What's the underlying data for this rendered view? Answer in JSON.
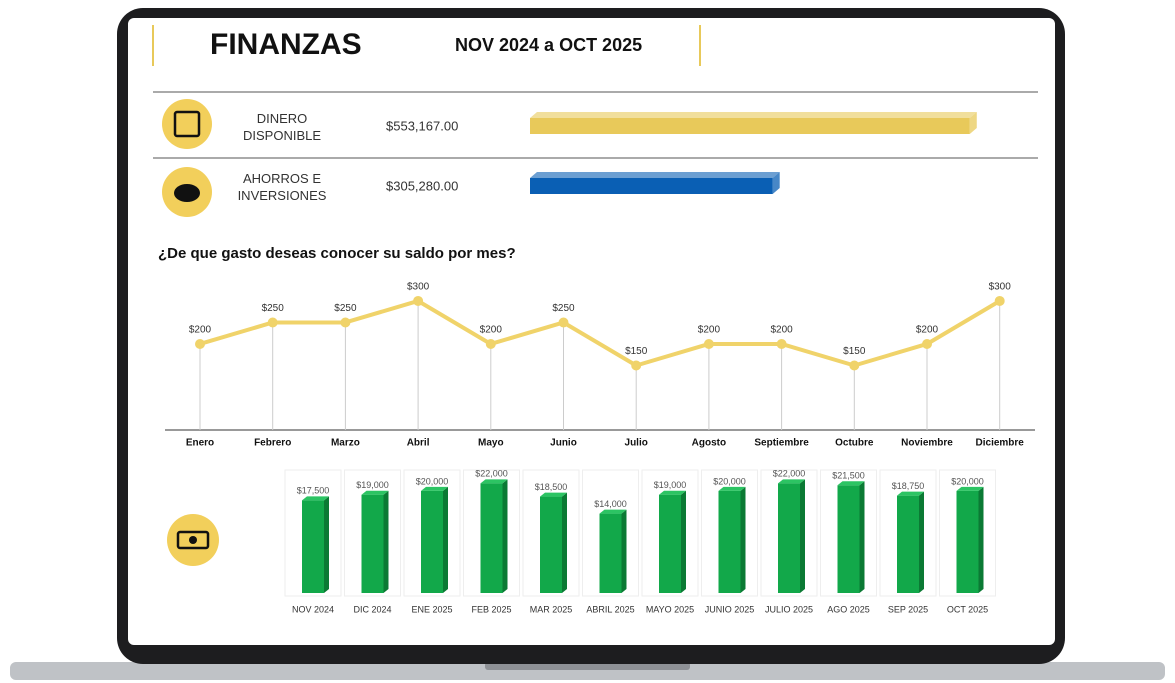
{
  "header": {
    "title": "FINANZAS",
    "period": "NOV 2024 a OCT 2025"
  },
  "question": "¿De que gasto deseas conocer su saldo por mes?",
  "chart_data": [
    {
      "type": "hbar",
      "categories": [
        "DINERO DISPONIBLE",
        "AHORROS E INVERSIONES"
      ],
      "values": [
        553167,
        305280
      ],
      "value_labels": [
        "$553,167.00",
        "$305,280.00"
      ],
      "colors": [
        "#e8c95a",
        "#0a5fb4"
      ],
      "xlim": [
        0,
        600000
      ]
    },
    {
      "type": "line",
      "categories": [
        "Enero",
        "Febrero",
        "Marzo",
        "Abril",
        "Mayo",
        "Junio",
        "Julio",
        "Agosto",
        "Septiembre",
        "Octubre",
        "Noviembre",
        "Diciembre"
      ],
      "values": [
        200,
        250,
        250,
        300,
        200,
        250,
        150,
        200,
        200,
        150,
        200,
        300
      ],
      "value_labels": [
        "$200",
        "$250",
        "$250",
        "$300",
        "$200",
        "$250",
        "$150",
        "$200",
        "$200",
        "$150",
        "$200",
        "$300"
      ],
      "color": "#f0d36a",
      "ylim": [
        0,
        372
      ]
    },
    {
      "type": "bar",
      "categories": [
        "NOV 2024",
        "DIC 2024",
        "ENE 2025",
        "FEB 2025",
        "MAR 2025",
        "ABRIL 2025",
        "MAYO 2025",
        "JUNIO 2025",
        "JULIO 2025",
        "AGO 2025",
        "SEP 2025",
        "OCT 2025"
      ],
      "values": [
        17500,
        19000,
        20000,
        22000,
        18500,
        14000,
        19000,
        20000,
        22000,
        21500,
        18750,
        20000
      ],
      "value_labels": [
        "$17,500",
        "$19,000",
        "$20,000",
        "$22,000",
        "$18,500",
        "$14,000",
        "$19,000",
        "$20,000",
        "$22,000",
        "$21,500",
        "$18,750",
        "$20,000"
      ],
      "color": "#12a84a",
      "ylim": [
        -7000,
        25000
      ]
    }
  ]
}
